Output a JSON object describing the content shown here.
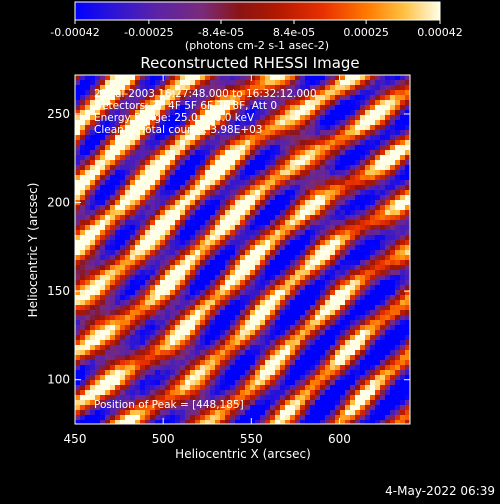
{
  "chart_data": {
    "type": "heatmap",
    "title": "Reconstructed RHESSI Image",
    "xlabel": "Heliocentric X (arcsec)",
    "ylabel": "Heliocentric Y (arcsec)",
    "xlim": [
      450,
      640
    ],
    "ylim": [
      75,
      272
    ],
    "x_ticks": [
      "450",
      "500",
      "550",
      "600"
    ],
    "y_ticks": [
      "100",
      "150",
      "200",
      "250"
    ],
    "x_tick_values": [
      450,
      500,
      550,
      600
    ],
    "y_tick_values": [
      100,
      150,
      200,
      250
    ],
    "colorbar": {
      "ticks": [
        "-0.00042",
        "-0.00025",
        "-8.4e-05",
        "8.4e-05",
        "0.00025",
        "0.00042"
      ],
      "tick_values": [
        -0.00042,
        -0.00025,
        -8.4e-05,
        8.4e-05,
        0.00025,
        0.00042
      ],
      "range": [
        -0.00042,
        0.00042
      ],
      "unit_label": "(photons cm-2 s-1 asec-2)",
      "colormap": [
        "#0000ff",
        "#4b1fb5",
        "#7a2a8c",
        "#8c1a2a",
        "#c02000",
        "#ff4a00",
        "#ffa500",
        "#ffff80",
        "#ffffff"
      ]
    },
    "annotations": {
      "line1": "28-Jul-2003 16:27:48.000 to 16:32:12.000",
      "line2": "Detectors: 3F 4F 5F 6F 7F 8F, Att 0",
      "line3": "Energy Range: 25.0 - 50.0 keV",
      "line4": "Clean     Total counts: 3.98E+03",
      "peak": "Position of Peak = [448,185]"
    },
    "stripes": {
      "angle_note": "diagonal bands running from upper-left to lower-right",
      "bright_band_count": 5
    }
  },
  "footer": {
    "date": "4-May-2022 06:39"
  },
  "colors": {
    "background": "#000000",
    "text": "#ffffff"
  }
}
